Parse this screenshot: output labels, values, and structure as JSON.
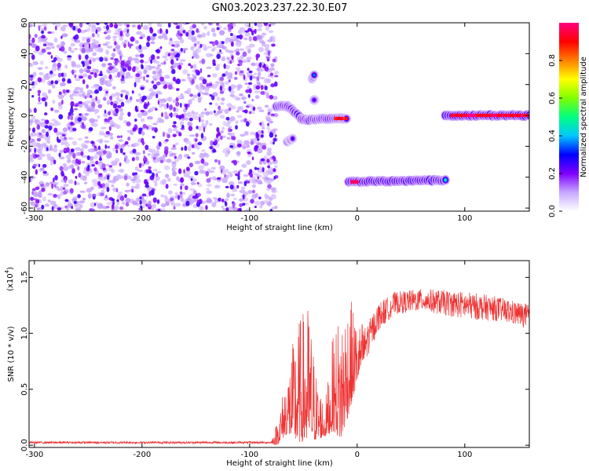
{
  "title": "GN03.2023.237.22.30.E07",
  "chart_data": [
    {
      "type": "heatmap",
      "xlabel": "Height of straight line (km)",
      "ylabel": "Frequency (Hz)",
      "xlim": [
        -305,
        160
      ],
      "ylim": [
        -62,
        60
      ],
      "xticks": [
        -300,
        -200,
        -100,
        0,
        100
      ],
      "yticks": [
        -60,
        -40,
        -20,
        0,
        20,
        40,
        60
      ],
      "colorbar": {
        "label": "Normalized spectral amplitude",
        "range": [
          0.0,
          1.0
        ],
        "ticks": [
          0.0,
          0.2,
          0.4,
          0.6,
          0.8
        ],
        "colors": [
          "#ffffff",
          "#c8a8ff",
          "#7f00ff",
          "#0000ff",
          "#00c8ff",
          "#00ff80",
          "#80ff00",
          "#ffff00",
          "#ff8000",
          "#ff0000",
          "#ff0080"
        ]
      },
      "noise_region": {
        "x": [
          -305,
          -75
        ],
        "y": [
          -62,
          60
        ],
        "amplitude": 0.15
      },
      "features": [
        {
          "name": "trace",
          "points": [
            [
              -75,
              6
            ],
            [
              -65,
              6
            ],
            [
              -58,
              2
            ],
            [
              -52,
              -2
            ],
            [
              -45,
              -3
            ],
            [
              -35,
              -2
            ],
            [
              -25,
              -2
            ],
            [
              -15,
              -2
            ],
            [
              -10,
              -2
            ]
          ],
          "amplitude": 0.45
        },
        {
          "name": "dot",
          "points": [
            [
              -42,
              24
            ],
            [
              -40,
              26
            ]
          ],
          "amplitude": 0.35
        },
        {
          "name": "dot",
          "points": [
            [
              -65,
              -17
            ],
            [
              -60,
              -15
            ]
          ],
          "amplitude": 0.3
        },
        {
          "name": "dot",
          "points": [
            [
              -40,
              10
            ]
          ],
          "amplitude": 0.25
        },
        {
          "name": "core",
          "points": [
            [
              -20,
              -2
            ],
            [
              -10,
              -2
            ]
          ],
          "amplitude": 0.9
        },
        {
          "name": "band",
          "points": [
            [
              -8,
              -43
            ],
            [
              82,
              -42
            ]
          ],
          "amplitude": 0.55
        },
        {
          "name": "core",
          "points": [
            [
              -5,
              -43
            ],
            [
              0,
              -43
            ]
          ],
          "amplitude": 0.95
        },
        {
          "name": "band",
          "points": [
            [
              82,
              0
            ],
            [
              160,
              0
            ]
          ],
          "amplitude": 0.6
        },
        {
          "name": "core",
          "points": [
            [
              88,
              0
            ],
            [
              160,
              0
            ]
          ],
          "amplitude": 0.95
        }
      ]
    },
    {
      "type": "line",
      "xlabel": "Height of straight line (km)",
      "ylabel": "SNR (10 * v/v)",
      "exponent_label": "(x10",
      "exponent_power": "4",
      "xlim": [
        -305,
        160
      ],
      "ylim": [
        -0.02,
        1.65
      ],
      "xticks": [
        -300,
        -200,
        -100,
        0,
        100
      ],
      "yticks": [
        0.0,
        0.5,
        1.0,
        1.5
      ],
      "ytick_labels": [
        "0.0",
        "0.5",
        "1.0",
        "1.5"
      ],
      "series": [
        {
          "color": "#ee3333",
          "envelope": [
            {
              "x": -305,
              "base": 0.02,
              "noise": 0.02
            },
            {
              "x": -80,
              "base": 0.02,
              "noise": 0.02
            },
            {
              "x": -75,
              "base": 0.05,
              "noise": 0.2
            },
            {
              "x": -65,
              "base": 0.25,
              "noise": 0.6
            },
            {
              "x": -55,
              "base": 0.3,
              "noise": 1.1
            },
            {
              "x": -45,
              "base": 0.35,
              "noise": 1.25
            },
            {
              "x": -38,
              "base": 0.2,
              "noise": 0.6
            },
            {
              "x": -30,
              "base": 0.15,
              "noise": 0.3
            },
            {
              "x": -22,
              "base": 0.35,
              "noise": 0.9
            },
            {
              "x": -15,
              "base": 0.35,
              "noise": 1.2
            },
            {
              "x": -8,
              "base": 0.55,
              "noise": 1.1
            },
            {
              "x": 0,
              "base": 0.7,
              "noise": 0.55
            },
            {
              "x": 10,
              "base": 0.95,
              "noise": 0.3
            },
            {
              "x": 20,
              "base": 1.15,
              "noise": 0.25
            },
            {
              "x": 35,
              "base": 1.27,
              "noise": 0.2
            },
            {
              "x": 60,
              "base": 1.3,
              "noise": 0.2
            },
            {
              "x": 100,
              "base": 1.25,
              "noise": 0.25
            },
            {
              "x": 130,
              "base": 1.22,
              "noise": 0.22
            },
            {
              "x": 160,
              "base": 1.15,
              "noise": 0.22
            }
          ]
        }
      ]
    }
  ]
}
